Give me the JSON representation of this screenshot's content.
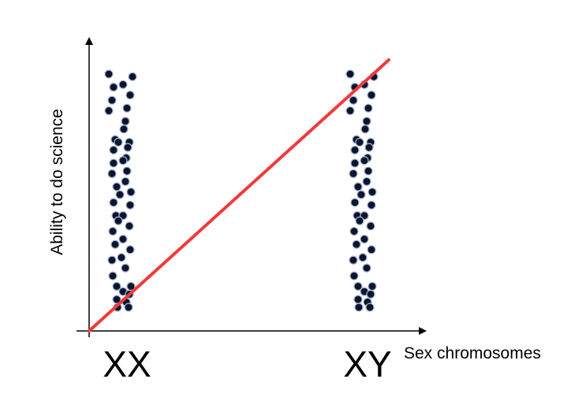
{
  "chart_data": {
    "type": "scatter",
    "xlabel": "Sex chromosomes",
    "ylabel": "Ability to do science",
    "categories": [
      "XX",
      "XY"
    ],
    "y_scale": "arbitrary units",
    "ylim": [
      0,
      100
    ],
    "grid": false,
    "legend": "none",
    "point_color": "#0a1530",
    "trend_line_color": "#f03a3a",
    "series": [
      {
        "category": "XX",
        "values": [
          98,
          97,
          94,
          93,
          90,
          88,
          85,
          84,
          80,
          77,
          73,
          72,
          72,
          70,
          69,
          66,
          65,
          64,
          61,
          60,
          57,
          55,
          53,
          52,
          49,
          48,
          44,
          44,
          42,
          40,
          38,
          35,
          33,
          31,
          28,
          27,
          24,
          21,
          17,
          17,
          15,
          14,
          12,
          11,
          9,
          9
        ]
      },
      {
        "category": "XY",
        "values": [
          98,
          97,
          94,
          93,
          90,
          88,
          85,
          84,
          80,
          77,
          73,
          72,
          72,
          70,
          69,
          66,
          65,
          64,
          61,
          60,
          57,
          55,
          53,
          52,
          49,
          48,
          44,
          44,
          42,
          40,
          38,
          35,
          33,
          31,
          28,
          27,
          24,
          21,
          17,
          17,
          15,
          14,
          12,
          11,
          9,
          9
        ]
      }
    ],
    "trend_line": {
      "from": {
        "category": "XX",
        "y": 0
      },
      "to": {
        "category": "XY",
        "y": 104
      }
    }
  }
}
